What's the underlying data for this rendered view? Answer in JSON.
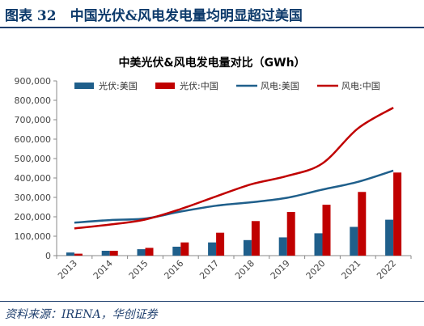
{
  "figure": {
    "title": "图表 32　中国光伏&风电发电量均明显超过美国",
    "source": "资料来源：IRENA，华创证券"
  },
  "colors": {
    "solar_us": "#1f5f8b",
    "solar_cn": "#c00000",
    "wind_us": "#1f5f8b",
    "wind_cn": "#c00000",
    "header": "#0d3a6b"
  },
  "chart_data": {
    "type": "bar",
    "title": "中美光伏&风电发电量对比（GWh）",
    "xlabel": "",
    "ylabel": "",
    "categories": [
      "2013",
      "2014",
      "2015",
      "2016",
      "2017",
      "2018",
      "2019",
      "2020",
      "2021",
      "2022"
    ],
    "ylim": [
      0,
      900000
    ],
    "yticks": [
      0,
      100000,
      200000,
      300000,
      400000,
      500000,
      600000,
      700000,
      800000,
      900000
    ],
    "ytick_labels": [
      "0",
      "100,000",
      "200,000",
      "300,000",
      "400,000",
      "500,000",
      "600,000",
      "700,000",
      "800,000",
      "900,000"
    ],
    "grid": false,
    "legend_position": "top",
    "series": [
      {
        "name": "光伏:美国",
        "type": "bar",
        "values": [
          16000,
          25000,
          33000,
          46000,
          68000,
          80000,
          94000,
          115000,
          148000,
          185000
        ]
      },
      {
        "name": "光伏:中国",
        "type": "bar",
        "values": [
          10000,
          25000,
          40000,
          68000,
          118000,
          178000,
          225000,
          262000,
          328000,
          428000
        ]
      },
      {
        "name": "风电:美国",
        "type": "line",
        "values": [
          170000,
          183000,
          191000,
          227000,
          257000,
          275000,
          298000,
          340000,
          380000,
          438000
        ]
      },
      {
        "name": "风电:中国",
        "type": "line",
        "values": [
          140000,
          160000,
          186000,
          240000,
          305000,
          368000,
          410000,
          475000,
          655000,
          762000
        ]
      }
    ]
  }
}
